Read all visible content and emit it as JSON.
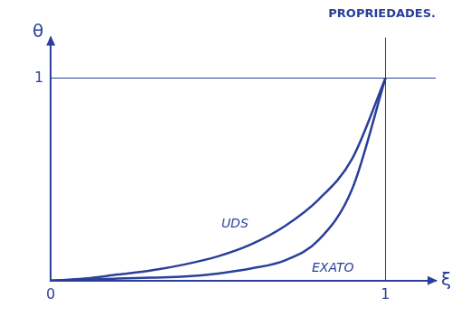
{
  "chart_data": {
    "type": "line",
    "title": "PROPRIEDADES.",
    "x_label": "ξ",
    "y_label": "θ",
    "xlim": [
      0,
      1.15
    ],
    "ylim": [
      0,
      1.2
    ],
    "xticks": [
      0,
      1
    ],
    "yticks": [
      1
    ],
    "grid": true,
    "series": [
      {
        "name": "UDS",
        "color": "#2a3f9a",
        "x": [
          0,
          0.1,
          0.2,
          0.3,
          0.4,
          0.5,
          0.6,
          0.7,
          0.8,
          0.9,
          1
        ],
        "values": [
          0,
          0.01,
          0.03,
          0.05,
          0.08,
          0.12,
          0.18,
          0.27,
          0.4,
          0.6,
          1
        ]
      },
      {
        "name": "EXATO",
        "color": "#2a3f9a",
        "x": [
          0,
          0.1,
          0.2,
          0.3,
          0.4,
          0.5,
          0.6,
          0.7,
          0.8,
          0.9,
          1
        ],
        "values": [
          0,
          0.005,
          0.01,
          0.015,
          0.02,
          0.035,
          0.06,
          0.1,
          0.2,
          0.45,
          1
        ]
      }
    ],
    "annotations": [
      {
        "text": "UDS",
        "x": 0.55,
        "y": 0.28
      },
      {
        "text": "EXATO",
        "x": 0.78,
        "y": 0.06
      }
    ]
  }
}
